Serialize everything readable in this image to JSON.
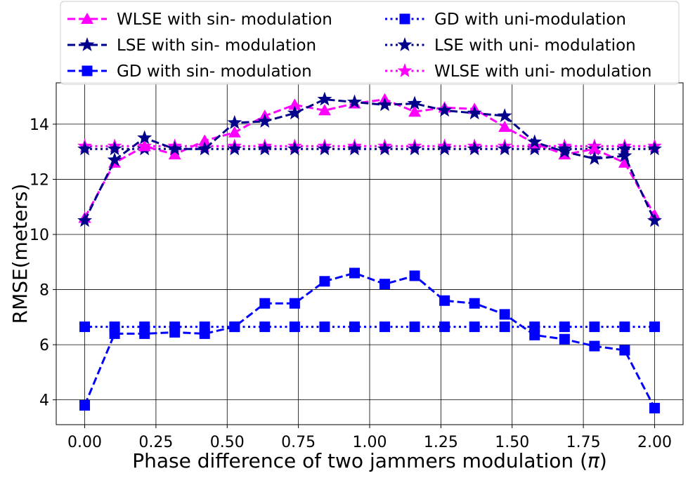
{
  "chart_data": {
    "type": "line",
    "xlabel": "Phase difference of two jammers modulation (",
    "xlabel_pi": "π",
    "xlabel_close": ")",
    "ylabel": "RMSE(meters)",
    "xlim": [
      -0.1,
      2.1
    ],
    "ylim": [
      3.1,
      15.5
    ],
    "x_ticks": [
      "0.00",
      "0.25",
      "0.50",
      "0.75",
      "1.00",
      "1.25",
      "1.50",
      "1.75",
      "2.00"
    ],
    "y_ticks": [
      "4",
      "6",
      "8",
      "10",
      "12",
      "14"
    ],
    "grid": true,
    "legend_position": "top",
    "x": [
      0.0,
      0.105,
      0.21,
      0.316,
      0.421,
      0.526,
      0.632,
      0.737,
      0.842,
      0.947,
      1.053,
      1.158,
      1.263,
      1.368,
      1.474,
      1.579,
      1.684,
      1.789,
      1.895,
      2.0
    ],
    "series": [
      {
        "name": "WLSE with sin- modulation",
        "color": "#ff00ff",
        "marker": "triangle",
        "linestyle": "dashed",
        "values": [
          10.6,
          12.6,
          13.2,
          12.9,
          13.4,
          13.7,
          14.3,
          14.7,
          14.5,
          14.75,
          14.9,
          14.45,
          14.6,
          14.55,
          13.9,
          13.3,
          12.9,
          13.1,
          12.6,
          10.7
        ]
      },
      {
        "name": "LSE with sin- modulation",
        "color": "#00008b",
        "marker": "star",
        "linestyle": "dashed",
        "values": [
          10.5,
          12.7,
          13.5,
          13.1,
          13.1,
          14.05,
          14.1,
          14.4,
          14.9,
          14.8,
          14.7,
          14.75,
          14.5,
          14.4,
          14.3,
          13.35,
          13.0,
          12.75,
          12.85,
          10.5
        ]
      },
      {
        "name": "GD with sin- modulation",
        "color": "#0000ff",
        "marker": "square",
        "linestyle": "dashed",
        "values": [
          3.8,
          6.4,
          6.4,
          6.45,
          6.4,
          6.65,
          7.5,
          7.5,
          8.3,
          8.6,
          8.2,
          8.5,
          7.6,
          7.5,
          7.1,
          6.35,
          6.2,
          5.95,
          5.8,
          3.7
        ]
      },
      {
        "name": "GD with uni-modulation",
        "color": "#0000ff",
        "marker": "square",
        "linestyle": "dotted",
        "values": [
          6.65,
          6.65,
          6.65,
          6.65,
          6.65,
          6.65,
          6.65,
          6.65,
          6.65,
          6.65,
          6.65,
          6.65,
          6.65,
          6.65,
          6.65,
          6.65,
          6.65,
          6.65,
          6.65,
          6.65
        ]
      },
      {
        "name": "LSE with uni- modulation",
        "color": "#00008b",
        "marker": "star",
        "linestyle": "dotted",
        "values": [
          13.1,
          13.1,
          13.1,
          13.1,
          13.1,
          13.1,
          13.1,
          13.1,
          13.1,
          13.1,
          13.1,
          13.1,
          13.1,
          13.1,
          13.1,
          13.1,
          13.1,
          13.1,
          13.1,
          13.1
        ]
      },
      {
        "name": "WLSE with uni- modulation",
        "color": "#ff00ff",
        "marker": "star",
        "linestyle": "dotted",
        "values": [
          13.2,
          13.2,
          13.2,
          13.2,
          13.2,
          13.2,
          13.2,
          13.2,
          13.2,
          13.2,
          13.2,
          13.2,
          13.2,
          13.2,
          13.2,
          13.2,
          13.2,
          13.2,
          13.2,
          13.2
        ]
      }
    ]
  }
}
